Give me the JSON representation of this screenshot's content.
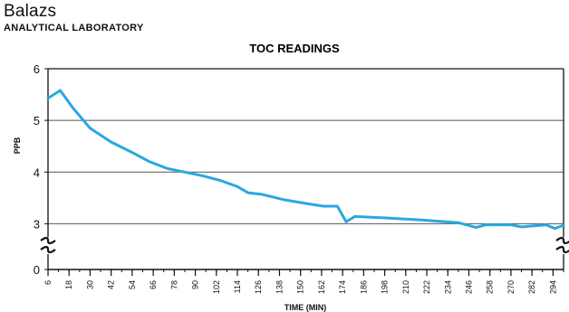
{
  "header": {
    "brand": "Balazs",
    "subtitle": "ANALYTICAL LABORATORY"
  },
  "colors": {
    "line": "#29a8df",
    "grid": "#555555",
    "axis": "#111111"
  },
  "chart_data": {
    "type": "line",
    "title": "TOC READINGS",
    "xlabel": "TIME (MIN)",
    "ylabel": "PPB",
    "xlim": [
      6,
      300
    ],
    "ylim": [
      0,
      6
    ],
    "y_axis_break": true,
    "y_break_between": [
      0,
      2.5
    ],
    "yticks": [
      0,
      3,
      4,
      5,
      6
    ],
    "xticks": [
      6,
      18,
      30,
      42,
      54,
      66,
      78,
      90,
      102,
      114,
      126,
      138,
      150,
      162,
      174,
      186,
      198,
      210,
      222,
      234,
      246,
      258,
      270,
      282,
      294
    ],
    "grid": "horizontal",
    "series": [
      {
        "x": [
          6,
          13,
          20,
          30,
          42,
          54,
          64,
          74,
          84,
          94,
          104,
          114,
          120,
          128,
          140,
          152,
          163,
          171,
          176,
          181,
          200,
          220,
          240,
          250,
          256,
          270,
          276,
          290,
          295,
          300
        ],
        "y": [
          5.43,
          5.58,
          5.25,
          4.85,
          4.58,
          4.38,
          4.2,
          4.07,
          4.0,
          3.93,
          3.84,
          3.72,
          3.6,
          3.57,
          3.47,
          3.4,
          3.34,
          3.34,
          3.04,
          3.14,
          3.11,
          3.07,
          3.02,
          2.93,
          2.98,
          2.98,
          2.94,
          2.98,
          2.91,
          2.97
        ]
      }
    ]
  }
}
